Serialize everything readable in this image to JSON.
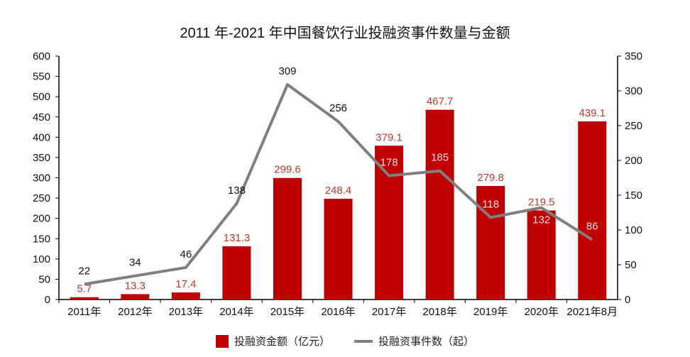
{
  "chart_data": {
    "type": "bar+line",
    "title": "2011 年-2021 年中国餐饮行业投融资事件数量与金额",
    "categories": [
      "2011年",
      "2012年",
      "2013年",
      "2014年",
      "2015年",
      "2016年",
      "2017年",
      "2018年",
      "2019年",
      "2020年",
      "2021年8月"
    ],
    "series": [
      {
        "name": "投融资金额（亿元）",
        "type": "bar",
        "axis": "left",
        "color": "#c00000",
        "values": [
          5.7,
          13.3,
          17.4,
          131.3,
          299.6,
          248.4,
          379.1,
          467.7,
          279.8,
          219.5,
          439.1
        ]
      },
      {
        "name": "投融资事件数（起）",
        "type": "line",
        "axis": "right",
        "color": "#7f7f7f",
        "values": [
          22,
          34,
          46,
          138,
          309,
          256,
          178,
          185,
          118,
          132,
          86
        ]
      }
    ],
    "y_left": {
      "range": [
        0,
        600
      ],
      "ticks": [
        0,
        50,
        100,
        150,
        200,
        250,
        300,
        350,
        400,
        450,
        500,
        550,
        600
      ]
    },
    "y_right": {
      "range": [
        0,
        350
      ],
      "ticks": [
        0,
        50,
        100,
        150,
        200,
        250,
        300,
        350
      ]
    },
    "grid": false,
    "legend": "bottom",
    "bar_label_color": "#c0392b"
  }
}
